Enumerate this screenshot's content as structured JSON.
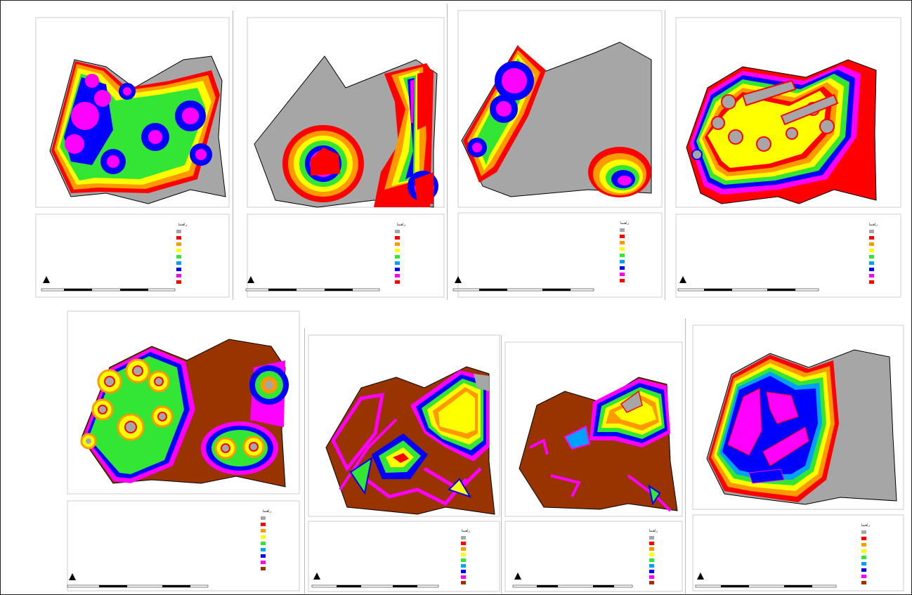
{
  "legend_colors": {
    "gray": "#a6a6a6",
    "red": "#ff0000",
    "orange": "#ff9900",
    "yellow": "#ffff00",
    "green": "#33e633",
    "cyan": "#00a0ff",
    "blue": "#0000ff",
    "magenta": "#ff00ff",
    "brown": "#993300"
  },
  "panels": [
    {
      "id": "map-1",
      "legend_title": "راهنما"
    },
    {
      "id": "map-2",
      "legend_title": "راهنما"
    },
    {
      "id": "map-3",
      "legend_title": "راهنما"
    },
    {
      "id": "map-4",
      "legend_title": "راهنما"
    },
    {
      "id": "map-5",
      "legend_title": "راهنما"
    },
    {
      "id": "map-6",
      "legend_title": "راهنما"
    },
    {
      "id": "map-7",
      "legend_title": "راهنما"
    },
    {
      "id": "map-8",
      "legend_title": "راهنما"
    }
  ]
}
